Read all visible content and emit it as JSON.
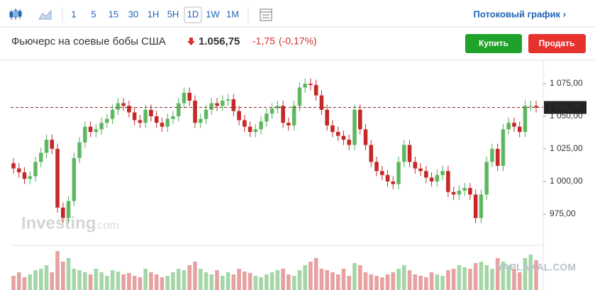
{
  "toolbar": {
    "intervals": [
      "1",
      "5",
      "15",
      "30",
      "1H",
      "5H",
      "1D",
      "1W",
      "1M"
    ],
    "active": "1D",
    "link": "Потоковый график ›"
  },
  "header": {
    "name": "Фьючерс на соевые бобы США",
    "price": "1.056,75",
    "change": "-1,75",
    "change_pct": "(-0,17%)",
    "buy": "Купить",
    "sell": "Продать"
  },
  "watermarks": {
    "logo": "Investing",
    "logo_suffix": ".com",
    "site": "YAPLAKAL.COM"
  },
  "chart_data": {
    "type": "candlestick",
    "up_color": "#4caf50",
    "down_color": "#c62828",
    "ylim": [
      951.6,
      1091.3
    ],
    "yticks": [
      {
        "value": 975,
        "label": "975,00"
      },
      {
        "value": 1000,
        "label": "1 000,00"
      },
      {
        "value": 1025,
        "label": "1 025,00"
      },
      {
        "value": 1050,
        "label": "1 050,00"
      },
      {
        "value": 1075,
        "label": "1 075,00"
      }
    ],
    "last_price": {
      "value": 1056.75,
      "label": "1 056,75"
    },
    "open": [
      1014,
      1010,
      1007,
      1002,
      1004,
      1015,
      1022,
      1032,
      1025,
      980,
      972,
      985,
      1018,
      1030,
      1042,
      1038,
      1040,
      1045,
      1048,
      1055,
      1060,
      1058,
      1053,
      1047,
      1045,
      1055,
      1050,
      1045,
      1042,
      1048,
      1050,
      1060,
      1068,
      1062,
      1045,
      1048,
      1055,
      1060,
      1058,
      1062,
      1063,
      1054,
      1047,
      1042,
      1038,
      1040,
      1046,
      1052,
      1056,
      1058,
      1045,
      1043,
      1058,
      1072,
      1075,
      1074,
      1066,
      1055,
      1043,
      1038,
      1035,
      1032,
      1028,
      1055,
      1040,
      1028,
      1015,
      1008,
      1005,
      1000,
      998,
      1015,
      1028,
      1015,
      1010,
      1008,
      1003,
      1000,
      1005,
      1008,
      992,
      990,
      993,
      995,
      990,
      972,
      990,
      1015,
      1025,
      1012,
      1040,
      1045,
      1042,
      1038,
      1058,
      1058
    ],
    "high": [
      1018,
      1014,
      1011,
      1008,
      1019,
      1026,
      1036,
      1036,
      1029,
      984,
      989,
      1022,
      1034,
      1046,
      1046,
      1044,
      1049,
      1052,
      1059,
      1064,
      1064,
      1062,
      1057,
      1051,
      1059,
      1059,
      1054,
      1049,
      1052,
      1054,
      1064,
      1072,
      1072,
      1066,
      1052,
      1059,
      1064,
      1064,
      1066,
      1067,
      1067,
      1058,
      1051,
      1046,
      1044,
      1050,
      1056,
      1060,
      1062,
      1062,
      1049,
      1062,
      1076,
      1079,
      1079,
      1078,
      1070,
      1059,
      1047,
      1042,
      1039,
      1036,
      1059,
      1059,
      1044,
      1032,
      1019,
      1012,
      1009,
      1004,
      1019,
      1032,
      1032,
      1019,
      1014,
      1012,
      1007,
      1009,
      1012,
      1012,
      996,
      997,
      999,
      999,
      994,
      994,
      1019,
      1029,
      1029,
      1044,
      1049,
      1049,
      1046,
      1062,
      1062,
      1062
    ],
    "low": [
      1006,
      1003,
      998,
      998,
      1000,
      1011,
      1018,
      1021,
      976,
      968,
      968,
      981,
      1014,
      1026,
      1034,
      1034,
      1036,
      1041,
      1044,
      1051,
      1054,
      1049,
      1043,
      1041,
      1041,
      1046,
      1041,
      1038,
      1038,
      1044,
      1046,
      1056,
      1058,
      1041,
      1041,
      1044,
      1051,
      1054,
      1054,
      1058,
      1050,
      1043,
      1038,
      1034,
      1034,
      1036,
      1042,
      1048,
      1052,
      1041,
      1039,
      1039,
      1054,
      1068,
      1070,
      1062,
      1051,
      1039,
      1034,
      1031,
      1028,
      1024,
      1024,
      1036,
      1024,
      1011,
      1004,
      1001,
      996,
      994,
      994,
      1011,
      1011,
      1006,
      1004,
      999,
      996,
      996,
      1001,
      988,
      986,
      986,
      989,
      986,
      968,
      968,
      986,
      1011,
      1008,
      1008,
      1036,
      1038,
      1034,
      1034,
      1054,
      1052.75
    ],
    "close": [
      1010,
      1007,
      1002,
      1004,
      1015,
      1022,
      1032,
      1025,
      980,
      972,
      985,
      1018,
      1030,
      1042,
      1038,
      1040,
      1045,
      1048,
      1055,
      1060,
      1058,
      1053,
      1047,
      1045,
      1055,
      1050,
      1045,
      1042,
      1048,
      1050,
      1060,
      1068,
      1062,
      1045,
      1048,
      1055,
      1060,
      1058,
      1062,
      1063,
      1054,
      1047,
      1042,
      1038,
      1040,
      1046,
      1052,
      1056,
      1058,
      1045,
      1043,
      1058,
      1072,
      1075,
      1074,
      1066,
      1055,
      1043,
      1038,
      1035,
      1032,
      1028,
      1055,
      1040,
      1028,
      1015,
      1008,
      1005,
      1000,
      998,
      1015,
      1028,
      1015,
      1010,
      1008,
      1003,
      1000,
      1005,
      1008,
      992,
      990,
      993,
      995,
      990,
      972,
      990,
      1015,
      1025,
      1012,
      1040,
      1045,
      1042,
      1038,
      1058,
      1058,
      1056.75
    ],
    "volume": [
      20,
      25,
      18,
      22,
      28,
      30,
      35,
      25,
      55,
      40,
      45,
      30,
      28,
      25,
      22,
      30,
      25,
      20,
      28,
      26,
      22,
      24,
      20,
      18,
      30,
      25,
      22,
      18,
      20,
      25,
      30,
      28,
      35,
      40,
      30,
      25,
      22,
      28,
      20,
      25,
      22,
      30,
      26,
      24,
      20,
      18,
      22,
      25,
      28,
      30,
      22,
      20,
      28,
      35,
      40,
      45,
      30,
      28,
      25,
      22,
      30,
      20,
      38,
      35,
      25,
      22,
      20,
      18,
      22,
      25,
      30,
      35,
      28,
      22,
      20,
      18,
      25,
      22,
      20,
      28,
      30,
      35,
      32,
      30,
      38,
      40,
      35,
      30,
      45,
      40,
      35,
      30,
      25,
      45,
      50,
      42
    ]
  }
}
